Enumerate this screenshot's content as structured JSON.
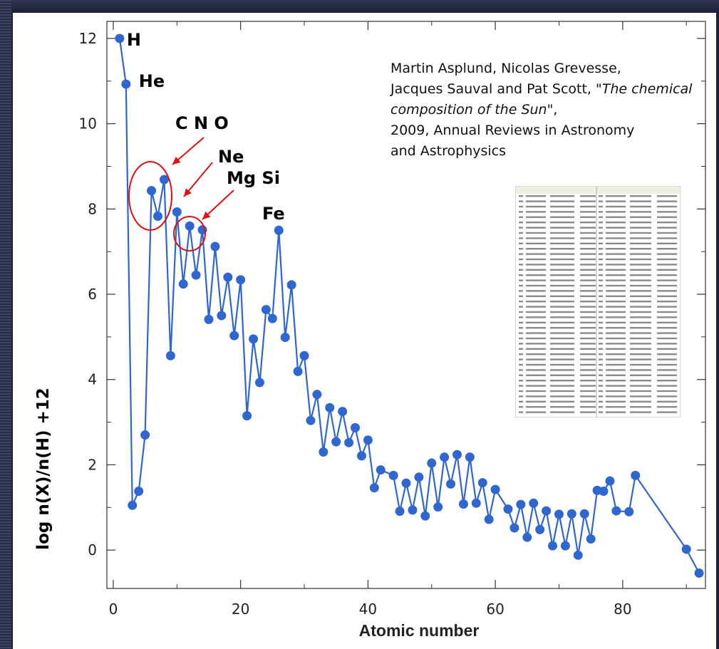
{
  "citation": {
    "authors_line1": "Martin Asplund, Nicolas Grevesse,",
    "authors_line2": "Jacques Sauval and Pat Scott, ",
    "title": "\"The chemical composition of the Sun\"",
    "suffix": ",",
    "year_journal": "2009, Annual Reviews in Astronomy",
    "journal_end": "and Astrophysics"
  },
  "annotations": {
    "H": "H",
    "He": "He",
    "CNO": "C  N  O",
    "Ne": "Ne",
    "MgSi": "Mg Si",
    "Fe": "Fe"
  },
  "colors": {
    "series": "#2f66d0",
    "annotation": "#e01010",
    "text": "#111111"
  },
  "chart_data": {
    "type": "line",
    "xlabel": "Atomic number",
    "ylabel": "log n(X)/n(H) +12",
    "xlim": [
      -1,
      93
    ],
    "ylim": [
      -0.9,
      12.4
    ],
    "xticks": [
      0,
      20,
      40,
      60,
      80
    ],
    "yticks": [
      0,
      2,
      4,
      6,
      8,
      10,
      12
    ],
    "grid": false,
    "series": [
      {
        "x": [
          1,
          2,
          3,
          4,
          5,
          6,
          7,
          8,
          9,
          10,
          11,
          12,
          13,
          14,
          15,
          16,
          17,
          18,
          19,
          20,
          21,
          22,
          23,
          24,
          25,
          26,
          27,
          28,
          29,
          30,
          31,
          32,
          33,
          34,
          35,
          36,
          37,
          38,
          39,
          40,
          41,
          42,
          44,
          45,
          46,
          47,
          48,
          49,
          50,
          51,
          52,
          53,
          54,
          55,
          56,
          57,
          58,
          59,
          60,
          62,
          63,
          64,
          65,
          66,
          67,
          68,
          69,
          70,
          71,
          72,
          73,
          74,
          75,
          76,
          77,
          78,
          79,
          81,
          82,
          90,
          92
        ],
        "y": [
          12.0,
          10.93,
          1.05,
          1.38,
          2.7,
          8.43,
          7.83,
          8.69,
          4.56,
          7.93,
          6.24,
          7.6,
          6.45,
          7.51,
          5.41,
          7.12,
          5.5,
          6.4,
          5.03,
          6.34,
          3.15,
          4.95,
          3.93,
          5.64,
          5.43,
          7.5,
          4.99,
          6.22,
          4.19,
          4.56,
          3.04,
          3.65,
          2.3,
          3.34,
          2.54,
          3.25,
          2.52,
          2.87,
          2.21,
          2.58,
          1.46,
          1.88,
          1.75,
          0.91,
          1.57,
          0.94,
          1.71,
          0.8,
          2.04,
          1.01,
          2.18,
          1.55,
          2.24,
          1.08,
          2.18,
          1.1,
          1.58,
          0.72,
          1.42,
          0.96,
          0.52,
          1.07,
          0.3,
          1.1,
          0.48,
          0.92,
          0.1,
          0.84,
          0.1,
          0.85,
          -0.12,
          0.85,
          0.26,
          1.4,
          1.38,
          1.62,
          0.92,
          0.9,
          1.75,
          0.02,
          -0.54
        ]
      }
    ]
  }
}
